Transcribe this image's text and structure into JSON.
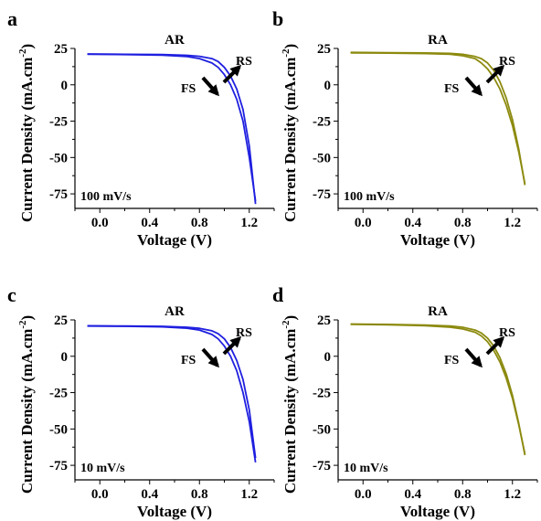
{
  "colors": {
    "AR": "#1f1fe0",
    "RA": "#8c8a0e",
    "axis": "#000000",
    "arrow": "#000000"
  },
  "shared": {
    "xlabel": "Voltage (V)",
    "ylabel": "Current Density (mA.cm",
    "ylabel_sup": "-2",
    "ylabel_close": ")",
    "xticks": [
      "0.0",
      "0.4",
      "0.8",
      "1.2"
    ],
    "yticks": [
      "25",
      "0",
      "-25",
      "-50",
      "-75"
    ],
    "xlim": [
      -0.2,
      1.4
    ],
    "ylim": [
      -85,
      25
    ],
    "fs_label": "FS",
    "rs_label": "RS"
  },
  "chart_data": [
    {
      "letter": "a",
      "type": "line",
      "title": "AR",
      "color_key": "AR",
      "rate": "100 mV/s",
      "series": [
        {
          "x": [
            -0.1,
            0.2,
            0.5,
            0.7,
            0.8,
            0.9,
            0.95,
            1.0,
            1.05,
            1.1,
            1.15,
            1.2,
            1.25
          ],
          "y": [
            21.0,
            20.8,
            20.4,
            19.5,
            18.0,
            15.0,
            12.0,
            7.0,
            0.0,
            -10.0,
            -25.0,
            -50.0,
            -80.0
          ]
        },
        {
          "x": [
            -0.1,
            0.2,
            0.5,
            0.7,
            0.8,
            0.9,
            0.95,
            1.0,
            1.05,
            1.1,
            1.15,
            1.2,
            1.25
          ],
          "y": [
            21.2,
            21.0,
            20.8,
            20.3,
            19.6,
            18.0,
            16.0,
            12.0,
            6.0,
            -3.0,
            -17.0,
            -42.0,
            -82.0
          ]
        }
      ]
    },
    {
      "letter": "b",
      "type": "line",
      "title": "RA",
      "color_key": "RA",
      "rate": "100 mV/s",
      "series": [
        {
          "x": [
            -0.1,
            0.2,
            0.5,
            0.7,
            0.8,
            0.9,
            0.95,
            1.0,
            1.05,
            1.1,
            1.15,
            1.2,
            1.25,
            1.3
          ],
          "y": [
            22.0,
            21.8,
            21.5,
            21.0,
            20.0,
            18.0,
            15.0,
            11.0,
            5.0,
            -3.0,
            -14.0,
            -28.0,
            -46.0,
            -68.0
          ]
        },
        {
          "x": [
            -0.1,
            0.2,
            0.5,
            0.7,
            0.8,
            0.9,
            0.95,
            1.0,
            1.05,
            1.1,
            1.15,
            1.2,
            1.25,
            1.3
          ],
          "y": [
            22.3,
            22.1,
            21.9,
            21.6,
            21.0,
            19.5,
            18.0,
            15.0,
            10.0,
            2.0,
            -9.0,
            -24.0,
            -44.0,
            -69.0
          ]
        }
      ]
    },
    {
      "letter": "c",
      "type": "line",
      "title": "AR",
      "color_key": "AR",
      "rate": "10 mV/s",
      "series": [
        {
          "x": [
            -0.1,
            0.2,
            0.5,
            0.7,
            0.8,
            0.9,
            0.95,
            1.0,
            1.05,
            1.1,
            1.15,
            1.2,
            1.25
          ],
          "y": [
            20.8,
            20.6,
            20.2,
            19.3,
            18.0,
            15.0,
            12.0,
            7.0,
            0.0,
            -10.0,
            -25.0,
            -45.0,
            -73.0
          ]
        },
        {
          "x": [
            -0.1,
            0.2,
            0.5,
            0.7,
            0.8,
            0.9,
            0.95,
            1.0,
            1.05,
            1.1,
            1.15,
            1.2,
            1.25
          ],
          "y": [
            21.0,
            20.8,
            20.6,
            20.0,
            19.2,
            17.5,
            15.5,
            12.0,
            6.0,
            -3.0,
            -16.0,
            -37.0,
            -70.0
          ]
        }
      ]
    },
    {
      "letter": "d",
      "type": "line",
      "title": "RA",
      "color_key": "RA",
      "rate": "10 mV/s",
      "series": [
        {
          "x": [
            -0.1,
            0.2,
            0.5,
            0.7,
            0.8,
            0.9,
            0.95,
            1.0,
            1.05,
            1.1,
            1.15,
            1.2,
            1.25,
            1.3
          ],
          "y": [
            22.0,
            21.6,
            21.0,
            20.0,
            18.8,
            16.5,
            14.0,
            10.0,
            4.0,
            -4.0,
            -15.0,
            -29.0,
            -47.0,
            -67.0
          ]
        },
        {
          "x": [
            -0.1,
            0.2,
            0.5,
            0.7,
            0.8,
            0.9,
            0.95,
            1.0,
            1.05,
            1.1,
            1.15,
            1.2,
            1.25,
            1.3
          ],
          "y": [
            22.2,
            21.9,
            21.5,
            20.8,
            20.0,
            18.0,
            16.0,
            12.5,
            7.0,
            -1.0,
            -12.0,
            -27.0,
            -46.0,
            -68.0
          ]
        }
      ]
    }
  ]
}
